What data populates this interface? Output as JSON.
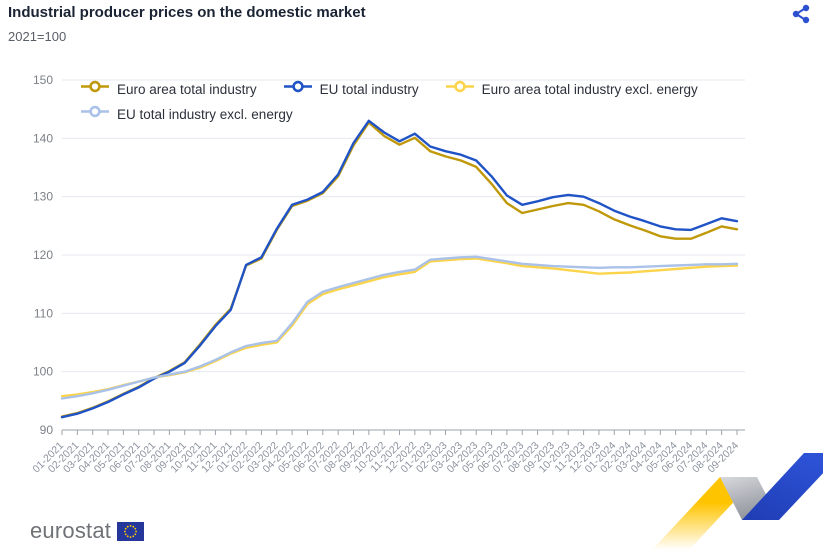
{
  "header": {
    "title": "Industrial producer prices on the domestic market",
    "subtitle": "2021=100",
    "share_icon": "share-icon"
  },
  "colors": {
    "accent_blue": "#2b50d0",
    "grid": "#e4eaf1",
    "axis": "#9aa3ad",
    "axis_label": "#7c8088",
    "title": "#1b2434",
    "ribbon_yellow": "#ffc400",
    "ribbon_gray": "#b9bdc5",
    "ribbon_blue": "#2a49c8",
    "eu_flag_blue": "#26379b",
    "eu_flag_stars": "#ffcc00"
  },
  "footer": {
    "logo_text": "eurostat",
    "flag_icon": "eu-flag-icon"
  },
  "chart_data": {
    "type": "line",
    "title": "Industrial producer prices on the domestic market",
    "subtitle": "2021=100",
    "grid": true,
    "legend_position": "top-left",
    "ylim": [
      90,
      150
    ],
    "yticks": [
      90,
      100,
      110,
      120,
      130,
      140,
      150
    ],
    "x": [
      "01-2021",
      "02-2021",
      "03-2021",
      "04-2021",
      "05-2021",
      "06-2021",
      "07-2021",
      "08-2021",
      "09-2021",
      "10-2021",
      "11-2021",
      "12-2021",
      "01-2022",
      "02-2022",
      "03-2022",
      "04-2022",
      "05-2022",
      "06-2022",
      "07-2022",
      "08-2022",
      "09-2022",
      "10-2022",
      "11-2022",
      "12-2022",
      "01-2023",
      "02-2023",
      "03-2023",
      "04-2023",
      "05-2023",
      "06-2023",
      "07-2023",
      "08-2023",
      "09-2023",
      "10-2023",
      "11-2023",
      "12-2023",
      "01-2024",
      "02-2024",
      "03-2024",
      "04-2024",
      "05-2024",
      "06-2024",
      "07-2024",
      "08-2024",
      "09-2024"
    ],
    "series": [
      {
        "name": "Euro area total industry",
        "color": "#c0990b",
        "values": [
          92.3,
          92.9,
          93.8,
          94.9,
          96.2,
          97.4,
          98.9,
          100.1,
          101.6,
          104.7,
          108.0,
          110.8,
          118.2,
          119.4,
          124.3,
          128.4,
          129.3,
          130.6,
          133.5,
          138.8,
          142.7,
          140.4,
          138.9,
          140.1,
          137.8,
          136.9,
          136.2,
          135.1,
          132.2,
          128.9,
          127.2,
          127.8,
          128.4,
          128.9,
          128.6,
          127.5,
          126.1,
          125.1,
          124.2,
          123.2,
          122.8,
          122.8,
          123.8,
          124.9,
          124.4
        ]
      },
      {
        "name": "EU total industry",
        "color": "#2053c5",
        "values": [
          92.2,
          92.8,
          93.7,
          94.8,
          96.1,
          97.3,
          98.8,
          100.0,
          101.5,
          104.5,
          107.8,
          110.6,
          118.3,
          119.6,
          124.5,
          128.6,
          129.5,
          130.8,
          133.8,
          139.2,
          143.0,
          141.0,
          139.5,
          140.8,
          138.6,
          137.8,
          137.2,
          136.2,
          133.5,
          130.2,
          128.6,
          129.2,
          129.9,
          130.3,
          130.0,
          128.9,
          127.6,
          126.6,
          125.8,
          124.9,
          124.4,
          124.3,
          125.3,
          126.3,
          125.8
        ]
      },
      {
        "name": "Euro area total industry excl. energy",
        "color": "#fbd44c",
        "values": [
          95.8,
          96.1,
          96.5,
          97.0,
          97.7,
          98.3,
          99.0,
          99.4,
          99.9,
          100.7,
          101.8,
          103.1,
          104.1,
          104.6,
          105.0,
          107.9,
          111.6,
          113.3,
          114.1,
          114.8,
          115.5,
          116.2,
          116.7,
          117.1,
          118.9,
          119.1,
          119.3,
          119.4,
          119.0,
          118.6,
          118.1,
          117.9,
          117.7,
          117.4,
          117.1,
          116.8,
          116.9,
          117.0,
          117.2,
          117.4,
          117.6,
          117.8,
          118.0,
          118.1,
          118.2
        ]
      },
      {
        "name": "EU total industry excl. energy",
        "color": "#aac1e8",
        "values": [
          95.4,
          95.8,
          96.3,
          96.9,
          97.6,
          98.3,
          99.0,
          99.5,
          100.0,
          100.9,
          102.0,
          103.3,
          104.4,
          104.9,
          105.3,
          108.3,
          112.0,
          113.7,
          114.5,
          115.2,
          115.9,
          116.6,
          117.1,
          117.5,
          119.2,
          119.4,
          119.6,
          119.7,
          119.3,
          118.9,
          118.5,
          118.3,
          118.1,
          118.0,
          117.9,
          117.8,
          117.9,
          117.9,
          118.0,
          118.1,
          118.2,
          118.3,
          118.4,
          118.4,
          118.5
        ]
      }
    ]
  }
}
